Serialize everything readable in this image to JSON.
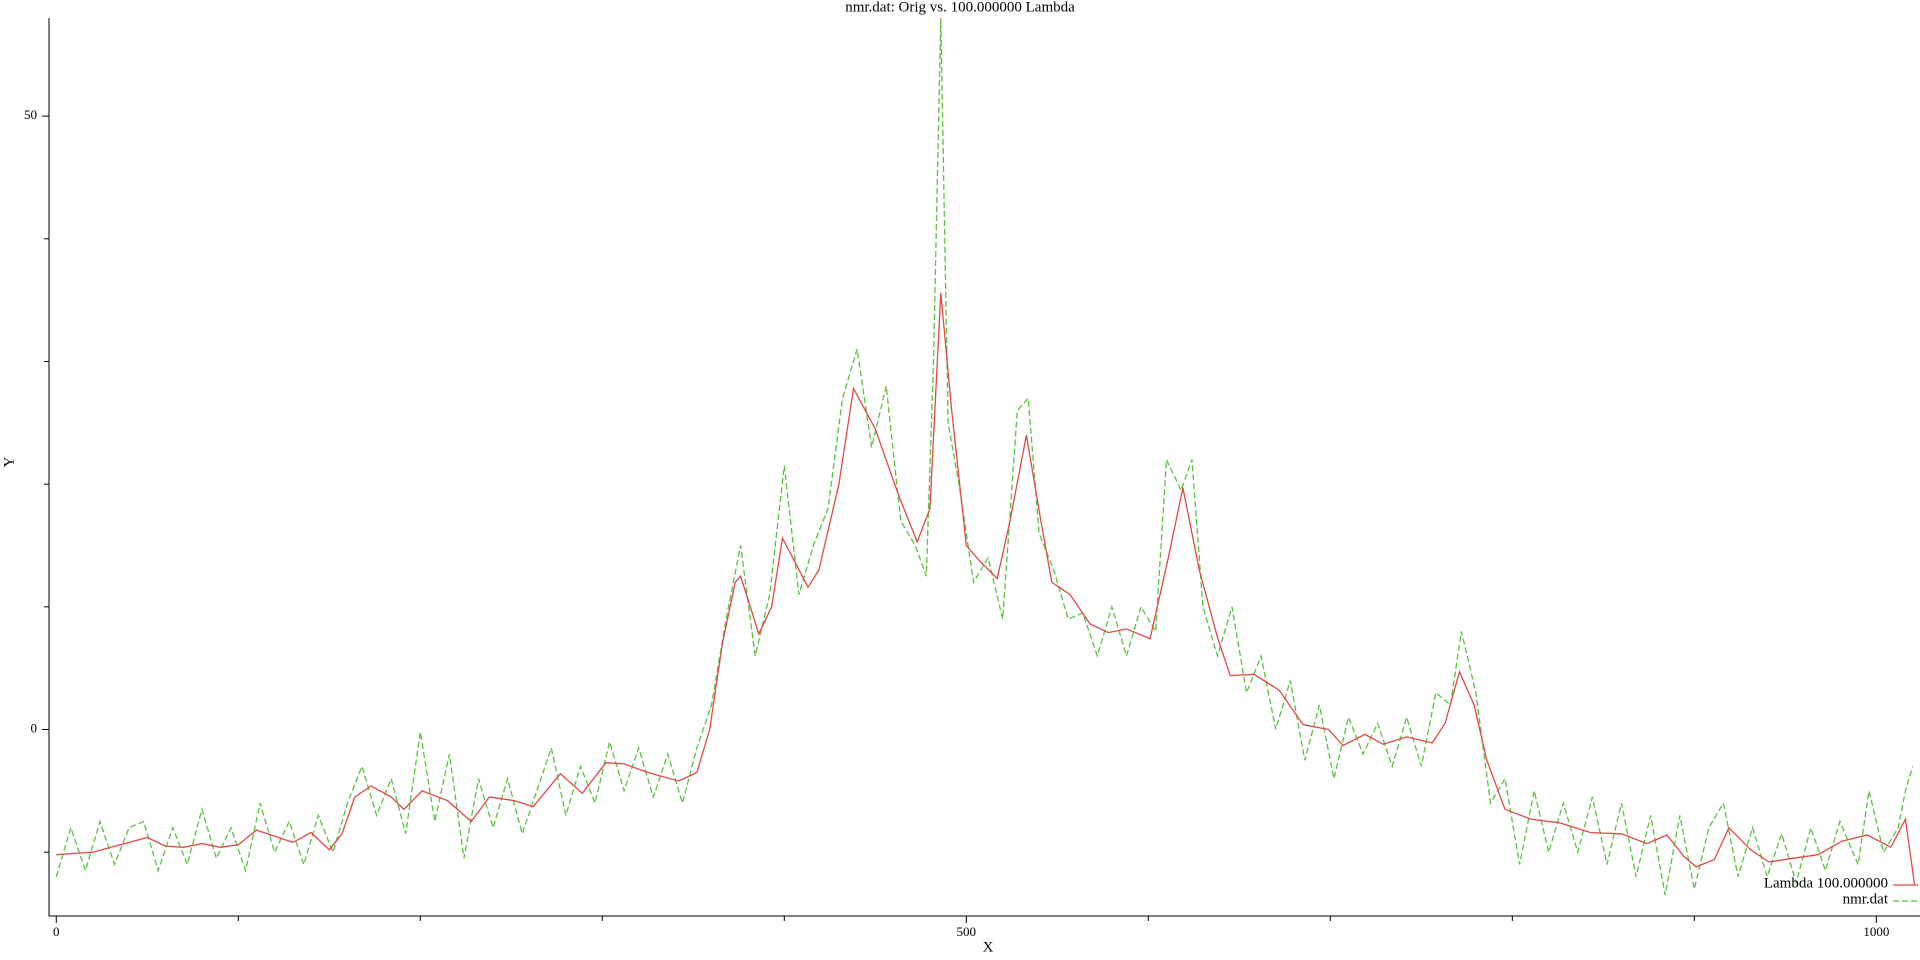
{
  "chart_data": {
    "type": "line",
    "title": "nmr.dat: Orig vs. 100.000000 Lambda",
    "xlabel": "X",
    "ylabel": "Y",
    "xlim": [
      -4,
      1024
    ],
    "ylim": [
      -15.2,
      58
    ],
    "xticks": [
      0,
      500,
      1000
    ],
    "xminor_ticks": [
      100,
      200,
      300,
      400,
      600,
      700,
      800,
      900
    ],
    "yticks": [
      0,
      50
    ],
    "yminor_ticks": [
      -10,
      10,
      20,
      30,
      40
    ],
    "legend": "lower right",
    "series": [
      {
        "name": "Lambda 100.000000",
        "color": "#e04848",
        "dash": false,
        "x": [
          0,
          10,
          20,
          30,
          40,
          50,
          60,
          70,
          80,
          90,
          100,
          110,
          120,
          130,
          140,
          150,
          157,
          164,
          173,
          184,
          191,
          201,
          215,
          228,
          238,
          252,
          262,
          277,
          289,
          302,
          312,
          325,
          342,
          352,
          359,
          366,
          373,
          376,
          386,
          393,
          399,
          413,
          419,
          430,
          438,
          450,
          463,
          473,
          480,
          486,
          492,
          500,
          507,
          517,
          524,
          533,
          541,
          547,
          557,
          568,
          578,
          588,
          601,
          611,
          619,
          628,
          638,
          645,
          658,
          672,
          685,
          699,
          707,
          719,
          729,
          742,
          756,
          763,
          771,
          779,
          786,
          796,
          810,
          826,
          843,
          860,
          874,
          885,
          894,
          901,
          911,
          919,
          931,
          941,
          954,
          968,
          981,
          995,
          1008,
          1016,
          1021
        ],
        "values": [
          -10.2,
          -10.1,
          -10.0,
          -9.6,
          -9.2,
          -8.8,
          -9.5,
          -9.6,
          -9.3,
          -9.6,
          -9.4,
          -8.2,
          -8.7,
          -9.2,
          -8.4,
          -9.8,
          -8.5,
          -5.5,
          -4.6,
          -5.5,
          -6.5,
          -5.0,
          -5.8,
          -7.5,
          -5.5,
          -5.8,
          -6.3,
          -3.6,
          -5.2,
          -2.7,
          -2.8,
          -3.5,
          -4.2,
          -3.5,
          0,
          7,
          12,
          12.5,
          7.8,
          10,
          15.6,
          11.6,
          13,
          20,
          27.8,
          24.5,
          19,
          15.3,
          18,
          35.6,
          26,
          15,
          13.8,
          12.3,
          17,
          24,
          17,
          12,
          11,
          8.6,
          7.9,
          8.2,
          7.4,
          14,
          19.7,
          13,
          7.5,
          4.4,
          4.5,
          3.2,
          0.4,
          0,
          -1.3,
          -0.4,
          -1.2,
          -0.6,
          -1.1,
          0.5,
          4.7,
          2,
          -2.5,
          -6.5,
          -7.3,
          -7.6,
          -8.4,
          -8.5,
          -9.3,
          -8.6,
          -10.3,
          -11.2,
          -10.6,
          -8,
          -9.8,
          -10.8,
          -10.5,
          -10.2,
          -9.1,
          -8.6,
          -9.6,
          -7.3,
          -12.6
        ]
      },
      {
        "name": "nmr.dat",
        "color": "#5cbf40",
        "dash": true,
        "x": [
          0,
          8,
          16,
          24,
          32,
          40,
          48,
          56,
          64,
          72,
          80,
          88,
          96,
          104,
          112,
          120,
          128,
          136,
          144,
          152,
          160,
          168,
          176,
          184,
          192,
          200,
          208,
          216,
          224,
          232,
          240,
          248,
          256,
          264,
          272,
          280,
          288,
          296,
          304,
          312,
          320,
          328,
          336,
          344,
          352,
          360,
          368,
          376,
          384,
          392,
          400,
          408,
          416,
          424,
          432,
          440,
          448,
          456,
          464,
          472,
          478,
          482,
          486,
          490,
          496,
          504,
          512,
          520,
          528,
          534,
          540,
          548,
          556,
          564,
          572,
          580,
          588,
          596,
          604,
          610,
          618,
          624,
          630,
          638,
          646,
          654,
          662,
          670,
          678,
          686,
          694,
          702,
          710,
          718,
          726,
          734,
          742,
          750,
          758,
          766,
          772,
          780,
          788,
          796,
          804,
          812,
          820,
          828,
          836,
          844,
          852,
          860,
          868,
          876,
          884,
          892,
          900,
          908,
          916,
          924,
          932,
          940,
          948,
          956,
          964,
          972,
          980,
          990,
          996,
          1004,
          1012,
          1016,
          1020
        ],
        "values": [
          -12,
          -8,
          -11.5,
          -7.5,
          -11,
          -8,
          -7.5,
          -11.5,
          -8,
          -11,
          -6.5,
          -10.5,
          -8,
          -11.5,
          -6,
          -10,
          -7.5,
          -11,
          -7,
          -10,
          -6,
          -3,
          -7,
          -4,
          -8.5,
          -0.2,
          -7.5,
          -2,
          -10.5,
          -4,
          -8,
          -4,
          -8.5,
          -5,
          -1.5,
          -7,
          -3,
          -6,
          -1,
          -5,
          -1.5,
          -5.5,
          -2,
          -6,
          -1.5,
          2,
          9,
          15,
          6,
          11,
          21.5,
          11,
          15,
          18,
          27,
          31,
          23,
          28,
          17,
          15,
          12.5,
          30,
          58,
          25,
          20,
          12,
          14,
          9,
          26,
          27,
          16,
          13,
          9,
          9.5,
          6,
          10,
          6,
          10,
          8,
          22,
          19.5,
          22,
          10,
          6,
          10,
          3,
          6,
          0,
          4,
          -2.5,
          2,
          -4,
          1,
          -2,
          0.5,
          -3,
          1,
          -3,
          3,
          2,
          8,
          3,
          -6,
          -4,
          -11,
          -5,
          -10,
          -6,
          -10,
          -5.5,
          -11,
          -6,
          -12,
          -7,
          -13.5,
          -7,
          -13,
          -8,
          -6,
          -12,
          -8,
          -12,
          -8.5,
          -12.5,
          -8,
          -11.5,
          -7.5,
          -11,
          -5,
          -10,
          -8,
          -5,
          -3
        ]
      }
    ]
  }
}
